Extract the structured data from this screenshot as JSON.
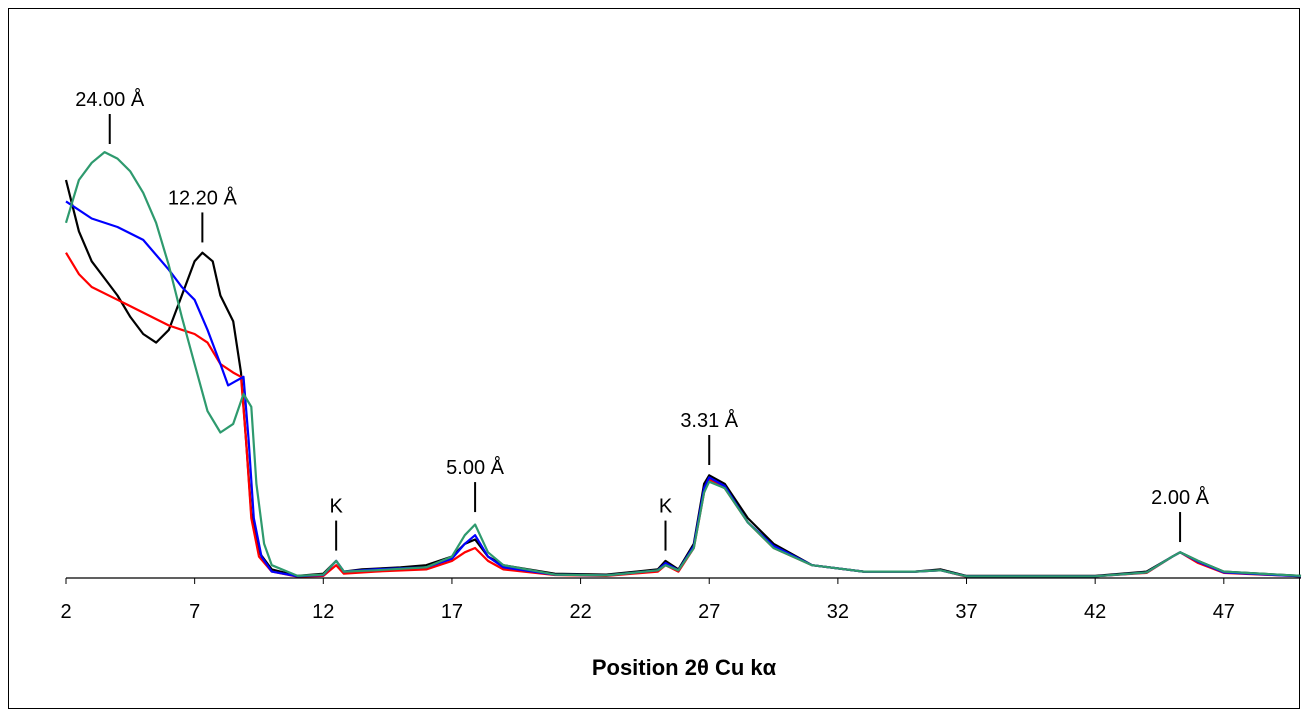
{
  "chart_data": {
    "type": "line",
    "xlabel": "Position 2θ Cu kα",
    "ylabel": "",
    "title": "",
    "xlim": [
      2,
      50
    ],
    "ylim": [
      0,
      100
    ],
    "xticks": [
      2,
      7,
      12,
      17,
      22,
      27,
      32,
      37,
      42,
      47
    ],
    "grid": false,
    "legend": "none",
    "series": [
      {
        "color": "#000000",
        "points": [
          [
            2,
            93
          ],
          [
            2.5,
            81
          ],
          [
            3,
            74
          ],
          [
            3.5,
            70
          ],
          [
            4,
            66
          ],
          [
            4.5,
            61
          ],
          [
            5,
            57
          ],
          [
            5.5,
            55
          ],
          [
            6,
            58
          ],
          [
            6.5,
            66
          ],
          [
            7,
            74
          ],
          [
            7.3,
            76
          ],
          [
            7.7,
            74
          ],
          [
            8,
            66
          ],
          [
            8.5,
            60
          ],
          [
            8.8,
            48
          ],
          [
            9,
            32
          ],
          [
            9.2,
            15
          ],
          [
            9.5,
            6
          ],
          [
            10,
            2
          ],
          [
            11,
            0.5
          ],
          [
            12,
            1
          ],
          [
            12.5,
            4
          ],
          [
            12.8,
            1.5
          ],
          [
            13.5,
            2
          ],
          [
            15,
            2.5
          ],
          [
            16,
            3
          ],
          [
            17,
            5
          ],
          [
            17.5,
            8
          ],
          [
            17.9,
            9
          ],
          [
            18.4,
            5
          ],
          [
            19,
            3
          ],
          [
            21,
            1
          ],
          [
            23,
            0.8
          ],
          [
            25,
            2
          ],
          [
            25.3,
            4
          ],
          [
            25.8,
            2
          ],
          [
            26.4,
            8
          ],
          [
            26.8,
            22
          ],
          [
            27,
            24
          ],
          [
            27.6,
            22
          ],
          [
            28.5,
            14
          ],
          [
            29.5,
            8
          ],
          [
            31,
            3
          ],
          [
            33,
            1.5
          ],
          [
            35,
            1.5
          ],
          [
            36,
            2
          ],
          [
            37,
            0.5
          ],
          [
            42,
            0.5
          ],
          [
            44,
            1.5
          ],
          [
            45,
            5
          ],
          [
            45.3,
            6
          ],
          [
            46,
            4
          ],
          [
            47,
            1.5
          ],
          [
            50,
            0.5
          ]
        ]
      },
      {
        "color": "#ff0000",
        "points": [
          [
            2,
            76
          ],
          [
            2.5,
            71
          ],
          [
            3,
            68
          ],
          [
            4,
            65
          ],
          [
            5,
            62
          ],
          [
            6,
            59
          ],
          [
            6.5,
            58
          ],
          [
            7,
            57
          ],
          [
            7.5,
            55
          ],
          [
            8,
            50
          ],
          [
            8.5,
            48
          ],
          [
            8.8,
            47
          ],
          [
            9,
            32
          ],
          [
            9.2,
            14
          ],
          [
            9.5,
            5
          ],
          [
            10,
            1.5
          ],
          [
            11,
            0.3
          ],
          [
            12,
            0.5
          ],
          [
            12.5,
            3
          ],
          [
            12.8,
            1
          ],
          [
            14,
            1.5
          ],
          [
            16,
            2
          ],
          [
            17,
            4
          ],
          [
            17.5,
            6
          ],
          [
            17.9,
            7
          ],
          [
            18.4,
            4
          ],
          [
            19,
            2
          ],
          [
            21,
            0.7
          ],
          [
            23,
            0.5
          ],
          [
            25,
            1.5
          ],
          [
            25.3,
            3
          ],
          [
            25.8,
            1.5
          ],
          [
            26.4,
            7
          ],
          [
            26.8,
            20
          ],
          [
            27,
            23
          ],
          [
            27.6,
            21
          ],
          [
            28.5,
            13
          ],
          [
            29.5,
            7
          ],
          [
            31,
            3
          ],
          [
            33,
            1.5
          ],
          [
            35,
            1.5
          ],
          [
            36,
            1.8
          ],
          [
            37,
            0.3
          ],
          [
            42,
            0.4
          ],
          [
            44,
            1.2
          ],
          [
            45,
            5
          ],
          [
            45.3,
            6
          ],
          [
            46,
            3.5
          ],
          [
            47,
            1.2
          ],
          [
            50,
            0.4
          ]
        ]
      },
      {
        "color": "#0000ff",
        "points": [
          [
            2,
            88
          ],
          [
            3,
            84
          ],
          [
            4,
            82
          ],
          [
            5,
            79
          ],
          [
            6,
            72
          ],
          [
            6.5,
            68
          ],
          [
            7,
            65
          ],
          [
            7.5,
            58
          ],
          [
            8,
            50
          ],
          [
            8.3,
            45
          ],
          [
            8.6,
            46
          ],
          [
            8.9,
            47
          ],
          [
            9.1,
            32
          ],
          [
            9.3,
            14
          ],
          [
            9.6,
            5
          ],
          [
            10,
            1.5
          ],
          [
            11,
            0.4
          ],
          [
            12,
            0.7
          ],
          [
            12.5,
            4
          ],
          [
            12.8,
            1.5
          ],
          [
            14,
            2
          ],
          [
            16,
            2.5
          ],
          [
            17,
            4.5
          ],
          [
            17.5,
            8
          ],
          [
            17.9,
            10
          ],
          [
            18.4,
            5
          ],
          [
            19,
            2.5
          ],
          [
            21,
            0.8
          ],
          [
            23,
            0.6
          ],
          [
            25,
            1.8
          ],
          [
            25.3,
            3.5
          ],
          [
            25.8,
            1.8
          ],
          [
            26.4,
            7.5
          ],
          [
            26.8,
            21
          ],
          [
            27,
            23.5
          ],
          [
            27.6,
            21.5
          ],
          [
            28.5,
            13
          ],
          [
            29.5,
            7.5
          ],
          [
            31,
            3
          ],
          [
            33,
            1.5
          ],
          [
            35,
            1.5
          ],
          [
            36,
            1.8
          ],
          [
            37,
            0.4
          ],
          [
            42,
            0.4
          ],
          [
            44,
            1.3
          ],
          [
            45,
            5
          ],
          [
            45.3,
            6
          ],
          [
            46,
            3.8
          ],
          [
            47,
            1.3
          ],
          [
            50,
            0.4
          ]
        ]
      },
      {
        "color": "#2e9a6e",
        "points": [
          [
            2,
            83
          ],
          [
            2.5,
            93
          ],
          [
            3,
            97
          ],
          [
            3.5,
            99.5
          ],
          [
            4,
            98
          ],
          [
            4.5,
            95
          ],
          [
            5,
            90
          ],
          [
            5.5,
            83
          ],
          [
            6,
            73
          ],
          [
            6.5,
            61
          ],
          [
            7,
            50
          ],
          [
            7.5,
            39
          ],
          [
            8,
            34
          ],
          [
            8.5,
            36
          ],
          [
            8.9,
            43
          ],
          [
            9.2,
            40
          ],
          [
            9.4,
            22
          ],
          [
            9.7,
            8
          ],
          [
            10,
            3
          ],
          [
            11,
            0.5
          ],
          [
            12,
            0.8
          ],
          [
            12.5,
            4
          ],
          [
            12.8,
            1.5
          ],
          [
            14,
            1.8
          ],
          [
            16,
            2.5
          ],
          [
            17,
            5
          ],
          [
            17.5,
            10
          ],
          [
            17.9,
            12.5
          ],
          [
            18.4,
            6
          ],
          [
            19,
            3
          ],
          [
            21,
            0.8
          ],
          [
            23,
            0.6
          ],
          [
            25,
            1.8
          ],
          [
            25.3,
            3
          ],
          [
            25.8,
            1.8
          ],
          [
            26.4,
            7
          ],
          [
            26.8,
            20
          ],
          [
            27,
            22.5
          ],
          [
            27.6,
            21
          ],
          [
            28.5,
            13
          ],
          [
            29.5,
            7
          ],
          [
            31,
            3
          ],
          [
            33,
            1.5
          ],
          [
            35,
            1.5
          ],
          [
            36,
            1.8
          ],
          [
            37,
            0.4
          ],
          [
            42,
            0.4
          ],
          [
            44,
            1.3
          ],
          [
            45,
            5
          ],
          [
            45.3,
            6
          ],
          [
            46,
            4
          ],
          [
            47,
            1.5
          ],
          [
            50,
            0.5
          ]
        ]
      }
    ],
    "annotations": [
      {
        "text": "24.00 Å",
        "x": 3.7,
        "y": 100
      },
      {
        "text": "12.20 Å",
        "x": 7.3,
        "y": 77
      },
      {
        "text": "K",
        "x": 12.5,
        "y": 5
      },
      {
        "text": "5.00 Å",
        "x": 17.9,
        "y": 14
      },
      {
        "text": "K",
        "x": 25.3,
        "y": 5
      },
      {
        "text": "3.31 Å",
        "x": 27,
        "y": 25
      },
      {
        "text": "2.00 Å",
        "x": 45.3,
        "y": 7
      }
    ]
  }
}
